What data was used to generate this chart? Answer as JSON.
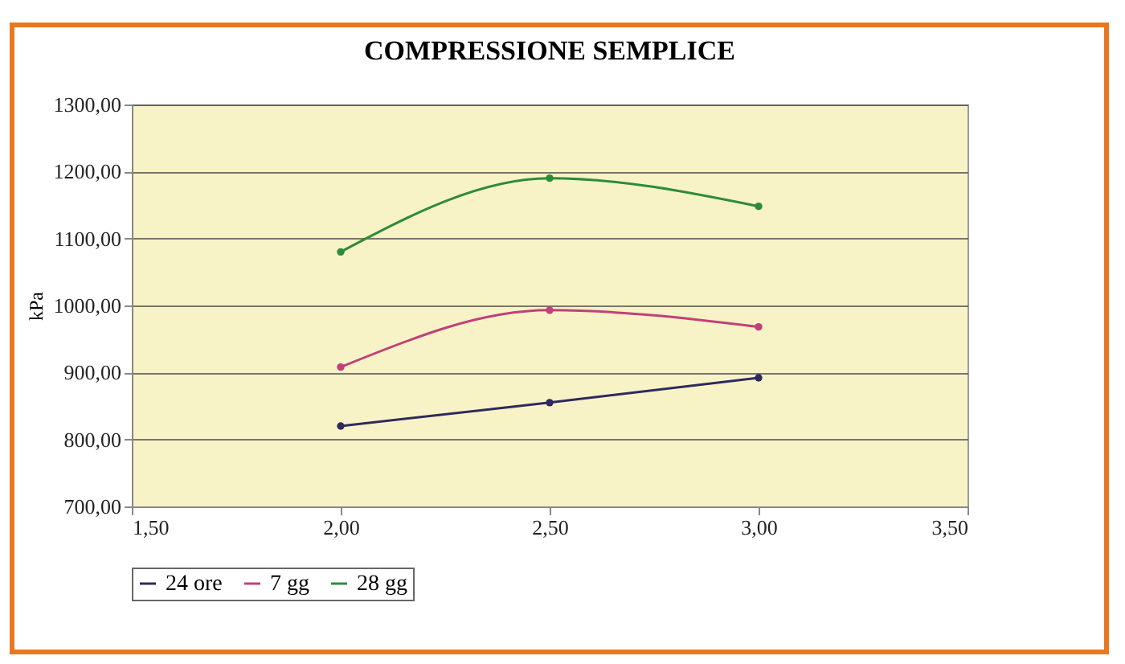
{
  "chart_data": {
    "type": "line",
    "title": "COMPRESSIONE SEMPLICE",
    "ylabel": "kPa",
    "x": [
      2.0,
      2.5,
      3.0
    ],
    "series": [
      {
        "name": "24 ore",
        "color": "#2e2a5e",
        "values": [
          820,
          855,
          892
        ]
      },
      {
        "name": "7 gg",
        "color": "#c0407a",
        "values": [
          908,
          993,
          968
        ]
      },
      {
        "name": "28 gg",
        "color": "#2e8b3a",
        "values": [
          1080,
          1190,
          1148
        ]
      }
    ],
    "xlim": [
      1.5,
      3.5
    ],
    "xticks": [
      {
        "value": 1.5,
        "label": "1,50"
      },
      {
        "value": 2.0,
        "label": "2,00"
      },
      {
        "value": 2.5,
        "label": "2,50"
      },
      {
        "value": 3.0,
        "label": "3,00"
      },
      {
        "value": 3.5,
        "label": "3,50"
      }
    ],
    "ylim": [
      700,
      1300
    ],
    "yticks": [
      {
        "value": 700,
        "label": "700,00"
      },
      {
        "value": 800,
        "label": "800,00"
      },
      {
        "value": 900,
        "label": "900,00"
      },
      {
        "value": 1000,
        "label": "1000,00"
      },
      {
        "value": 1100,
        "label": "1100,00"
      },
      {
        "value": 1200,
        "label": "1200,00"
      },
      {
        "value": 1300,
        "label": "1300,00"
      }
    ],
    "grid": "y",
    "legend": "bottom",
    "marker": "circle",
    "line_style": "solid"
  }
}
